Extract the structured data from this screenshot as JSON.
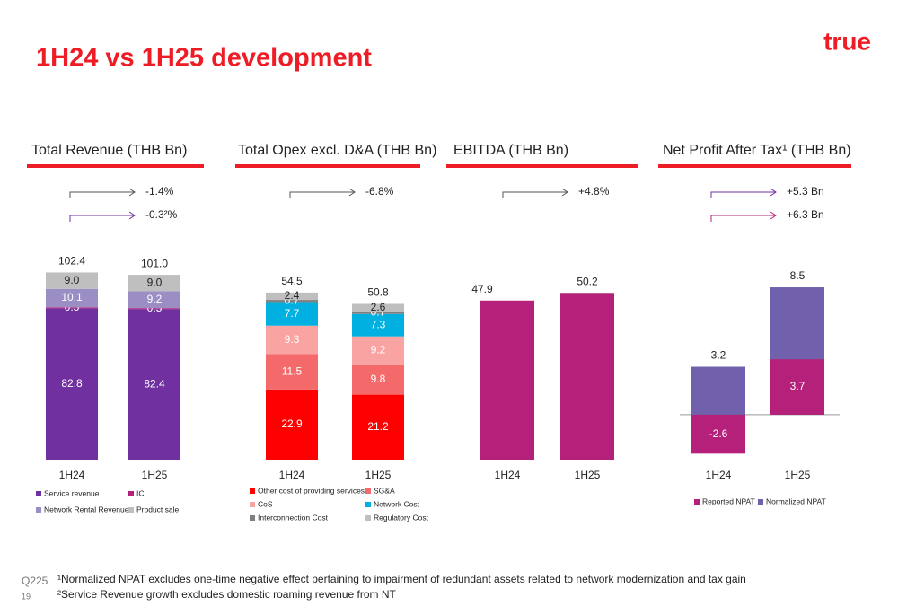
{
  "title": "1H24 vs 1H25 development",
  "logo": "true",
  "footer": {
    "period": "Q225",
    "page": "19",
    "notes": [
      "¹Normalized NPAT excludes one-time negative effect pertaining to impairment of redundant assets related to network modernization and tax gain",
      "²Service Revenue growth excludes domestic roaming revenue from NT"
    ]
  },
  "chart_data": [
    {
      "type": "stacked_bar",
      "title": "Total Revenue (THB Bn)",
      "categories": [
        "1H24",
        "1H25"
      ],
      "ylim": [
        0,
        109
      ],
      "totals": [
        102.4,
        101
      ],
      "total_labels": [
        "102.4",
        "101.0"
      ],
      "annotations": [
        {
          "text": "-1.4%",
          "color": "#555555"
        },
        {
          "text": "-0.3²%",
          "color": "#7030a0"
        }
      ],
      "series": [
        {
          "name": "Service revenue",
          "color": "#7030a0",
          "label_color": "#ffffff",
          "values": [
            82.8,
            82.4
          ],
          "value_labels": [
            "82.8",
            "82.4"
          ]
        },
        {
          "name": "IC",
          "color": "#b5217a",
          "label_color": "#ffffff",
          "values": [
            0.5,
            0.5
          ],
          "value_labels": [
            "0.5",
            "0.5"
          ]
        },
        {
          "name": "Network Rental Revenue",
          "color": "#9b8ec4",
          "label_color": "#ffffff",
          "values": [
            10.1,
            9.2
          ],
          "value_labels": [
            "10.1",
            "9.2"
          ]
        },
        {
          "name": "Product sale",
          "color": "#bfbfbf",
          "label_color": "#222222",
          "values": [
            9,
            9
          ],
          "value_labels": [
            "9.0",
            "9.0"
          ]
        }
      ]
    },
    {
      "type": "stacked_bar",
      "title": "Total Opex excl. D&A (THB Bn)",
      "categories": [
        "1H24",
        "1H25"
      ],
      "ylim": [
        0,
        65
      ],
      "totals": [
        54.5,
        50.8
      ],
      "total_labels": [
        "54.5",
        "50.8"
      ],
      "annotations": [
        {
          "text": "-6.8%",
          "color": "#555555"
        }
      ],
      "series": [
        {
          "name": "Other cost of providing services",
          "color": "#ff0000",
          "label_color": "#ffffff",
          "values": [
            22.9,
            21.2
          ],
          "value_labels": [
            "22.9",
            "21.2"
          ]
        },
        {
          "name": "SG&A",
          "color": "#f46a6a",
          "label_color": "#ffffff",
          "values": [
            11.5,
            9.8
          ],
          "value_labels": [
            "11.5",
            "9.8"
          ]
        },
        {
          "name": "CoS",
          "color": "#f9a3a3",
          "label_color": "#ffffff",
          "values": [
            9.3,
            9.2
          ],
          "value_labels": [
            "9.3",
            "9.2"
          ]
        },
        {
          "name": "Network Cost",
          "color": "#00b0e0",
          "label_color": "#ffffff",
          "values": [
            7.7,
            7.3
          ],
          "value_labels": [
            "7.7",
            "7.3"
          ]
        },
        {
          "name": "Interconnection Cost",
          "color": "#7f7f7f",
          "label_color": "#ffffff",
          "values": [
            0.7,
            0.7
          ],
          "value_labels": [
            "0.7",
            "0.7"
          ]
        },
        {
          "name": "Regulatory Cost",
          "color": "#bfbfbf",
          "label_color": "#222222",
          "values": [
            2.4,
            2.6
          ],
          "value_labels": [
            "2.4",
            "2.6"
          ]
        }
      ]
    },
    {
      "type": "bar",
      "title": "EBITDA (THB Bn)",
      "categories": [
        "1H24",
        "1H25"
      ],
      "ylim": [
        0,
        60
      ],
      "annotations": [
        {
          "text": "+4.8%",
          "color": "#555555"
        }
      ],
      "color": "#b5217a",
      "values": [
        47.9,
        50.2
      ]
    },
    {
      "type": "overlap_bar",
      "title": "Net Profit After Tax¹ (THB Bn)",
      "categories": [
        "1H24",
        "1H25"
      ],
      "ylim": [
        -3,
        10.3
      ],
      "annotations": [
        {
          "text": "+5.3 Bn",
          "color": "#7030a0"
        },
        {
          "text": "+6.3 Bn",
          "color": "#b5217a"
        }
      ],
      "series": [
        {
          "name": "Reported NPAT",
          "color": "#b5217a",
          "values": [
            -2.6,
            3.7
          ]
        },
        {
          "name": "Normalized NPAT",
          "color": "#7160ab",
          "values": [
            3.2,
            8.5
          ]
        }
      ]
    }
  ]
}
